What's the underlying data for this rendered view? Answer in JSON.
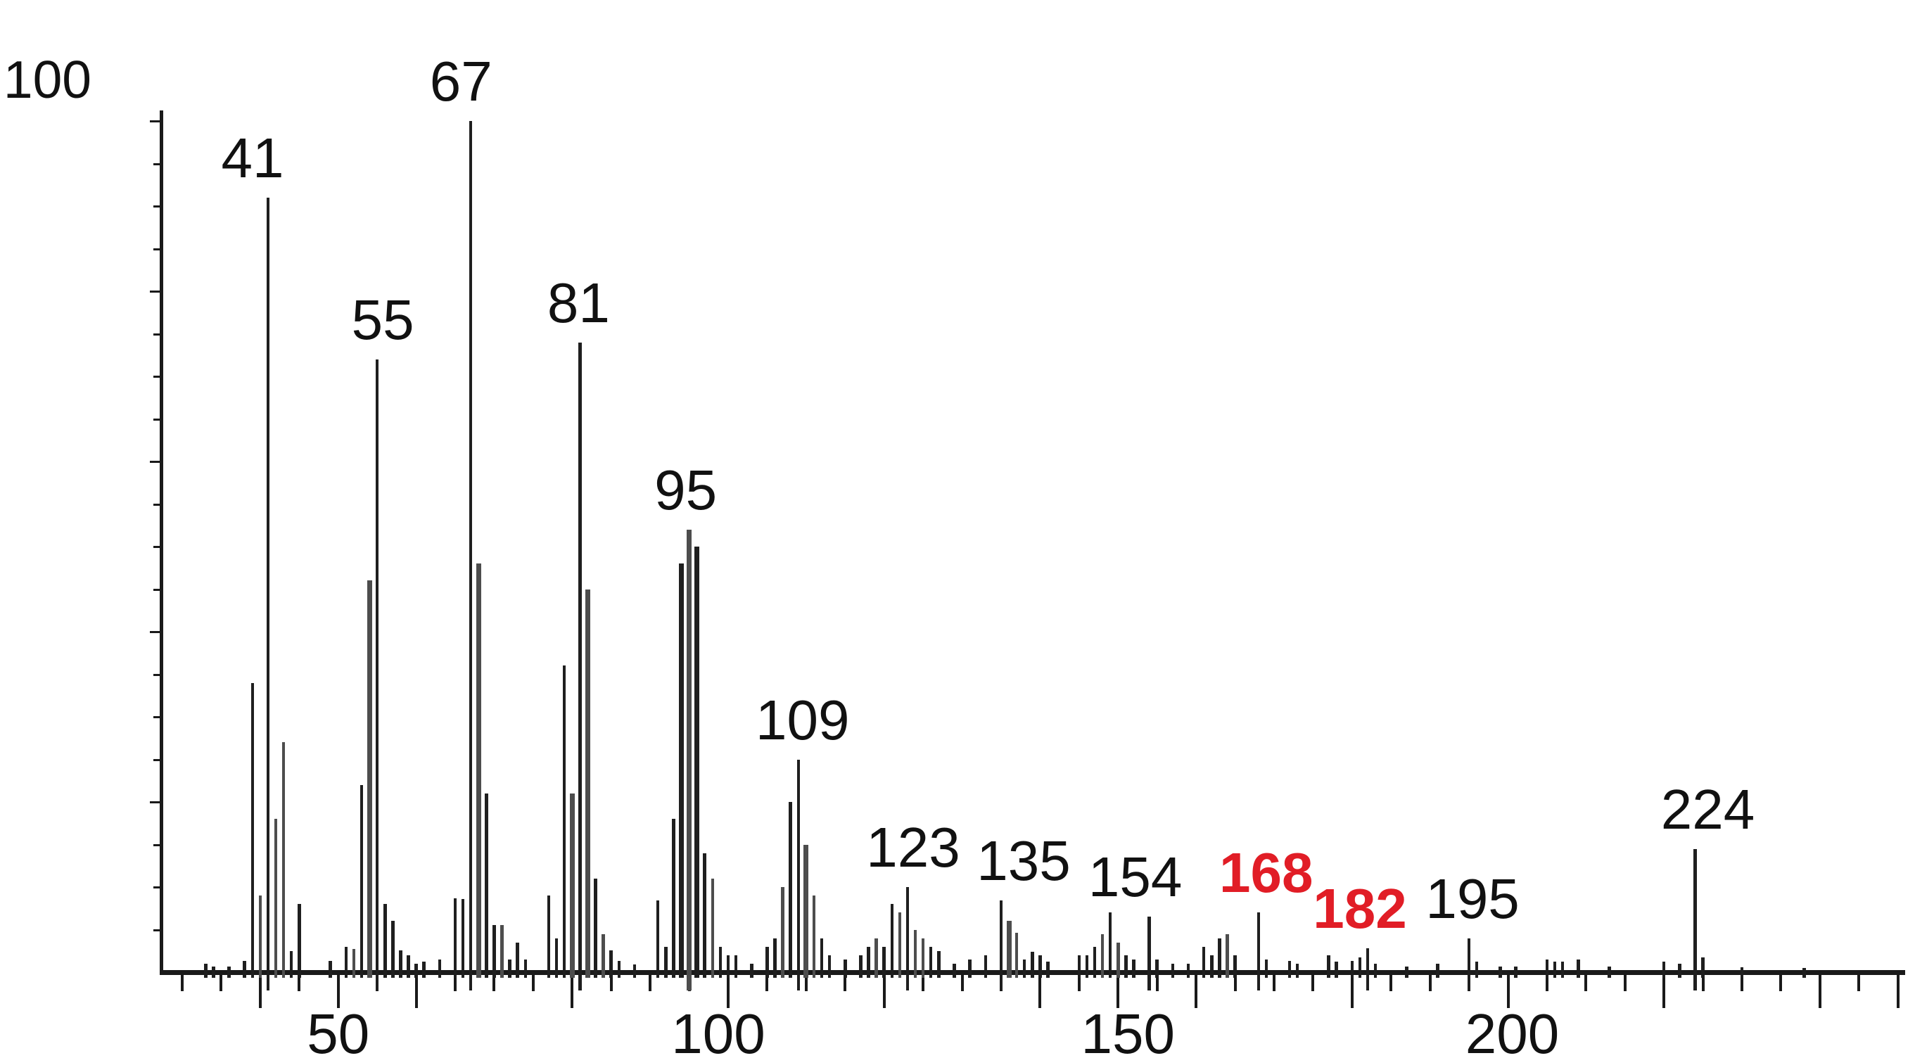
{
  "figure": {
    "background": "#ffffff",
    "axis_color": "#1a1a1a",
    "bar_color": "#1f1f1f",
    "bar_color_gray": "#4d4d4d",
    "highlight_red": "#e11d26"
  },
  "chart_data": {
    "type": "bar",
    "kind": "mass-spectrum",
    "title": "",
    "xlabel": "",
    "ylabel": "",
    "grid": "off",
    "legend": "none",
    "x_range": [
      26.5,
      250.5
    ],
    "ylim": [
      0,
      103
    ],
    "y_axis_top_label": "100",
    "x_tick_labels": [
      {
        "text": "50",
        "mz": 50,
        "dx": 0
      },
      {
        "text": "100",
        "mz": 100,
        "dx": -14
      },
      {
        "text": "150",
        "mz": 150,
        "dx": 14
      },
      {
        "text": "200",
        "mz": 200,
        "dx": 6
      }
    ],
    "x_minor_tick_step": 5,
    "x_major_tick_step": 20,
    "peaks": [
      [
        33,
        1,
        0,
        0
      ],
      [
        34,
        0.7,
        0,
        0
      ],
      [
        36,
        0.7,
        0,
        0
      ],
      [
        38,
        1.3,
        0,
        0
      ],
      [
        39,
        34,
        0,
        0
      ],
      [
        40,
        9,
        1,
        0
      ],
      [
        41,
        91,
        0,
        0
      ],
      [
        42,
        18,
        1,
        0
      ],
      [
        43,
        27,
        1,
        0
      ],
      [
        44,
        2.5,
        0,
        0
      ],
      [
        45,
        8,
        0,
        0
      ],
      [
        49,
        1.3,
        0,
        0
      ],
      [
        51,
        3,
        0,
        0
      ],
      [
        52,
        2.7,
        1,
        0
      ],
      [
        53,
        22,
        0,
        0
      ],
      [
        54,
        46,
        1,
        1
      ],
      [
        55,
        72,
        0,
        0
      ],
      [
        56,
        8,
        0,
        0
      ],
      [
        57,
        6,
        0,
        0
      ],
      [
        58,
        2.6,
        0,
        0
      ],
      [
        59,
        2,
        0,
        0
      ],
      [
        60,
        1,
        0,
        0
      ],
      [
        61,
        1.2,
        0,
        0
      ],
      [
        63,
        1.5,
        0,
        0
      ],
      [
        65,
        8.7,
        0,
        0
      ],
      [
        66,
        8.6,
        0,
        0
      ],
      [
        67,
        100,
        0,
        0
      ],
      [
        68,
        48,
        1,
        1
      ],
      [
        69,
        21,
        0,
        0
      ],
      [
        70,
        5.5,
        0,
        0
      ],
      [
        71,
        5.5,
        1,
        0
      ],
      [
        72,
        1.5,
        0,
        0
      ],
      [
        73,
        3.5,
        0,
        0
      ],
      [
        74,
        1.5,
        0,
        0
      ],
      [
        77,
        9,
        0,
        0
      ],
      [
        78,
        4,
        0,
        0
      ],
      [
        79,
        36,
        0,
        0
      ],
      [
        80,
        21,
        1,
        1
      ],
      [
        81,
        74,
        0,
        0
      ],
      [
        82,
        45,
        1,
        1
      ],
      [
        83,
        11,
        0,
        0
      ],
      [
        84,
        4.5,
        1,
        0
      ],
      [
        85,
        2.6,
        0,
        0
      ],
      [
        86,
        1.3,
        0,
        0
      ],
      [
        88,
        0.9,
        0,
        0
      ],
      [
        91,
        8.4,
        0,
        0
      ],
      [
        92,
        3,
        0,
        0
      ],
      [
        93,
        18,
        0,
        0
      ],
      [
        94,
        48,
        0,
        1
      ],
      [
        95,
        52,
        1,
        1
      ],
      [
        96,
        50,
        0,
        1
      ],
      [
        97,
        14,
        0,
        0
      ],
      [
        98,
        11,
        1,
        0
      ],
      [
        99,
        3,
        0,
        0
      ],
      [
        100,
        2,
        0,
        0
      ],
      [
        101,
        2,
        0,
        0
      ],
      [
        103,
        1,
        0,
        0
      ],
      [
        105,
        3,
        0,
        0
      ],
      [
        106,
        4,
        0,
        0
      ],
      [
        107,
        10,
        1,
        0
      ],
      [
        108,
        20,
        0,
        0
      ],
      [
        109,
        25,
        0,
        0
      ],
      [
        110,
        15,
        1,
        1
      ],
      [
        111,
        9,
        1,
        0
      ],
      [
        112,
        4,
        0,
        0
      ],
      [
        113,
        2,
        0,
        0
      ],
      [
        115,
        1.5,
        0,
        0
      ],
      [
        117,
        2,
        0,
        0
      ],
      [
        118,
        3,
        0,
        0
      ],
      [
        119,
        4,
        1,
        0
      ],
      [
        120,
        3,
        0,
        0
      ],
      [
        121,
        8,
        0,
        0
      ],
      [
        122,
        7,
        1,
        0
      ],
      [
        123,
        10,
        0,
        0
      ],
      [
        124,
        5,
        1,
        0
      ],
      [
        125,
        4,
        1,
        0
      ],
      [
        126,
        3,
        0,
        0
      ],
      [
        127,
        2.5,
        0,
        0
      ],
      [
        129,
        1,
        0,
        0
      ],
      [
        131,
        1.5,
        0,
        0
      ],
      [
        133,
        2,
        0,
        0
      ],
      [
        135,
        8.4,
        0,
        0
      ],
      [
        136,
        6,
        1,
        1
      ],
      [
        137,
        4.6,
        1,
        0
      ],
      [
        138,
        1.5,
        0,
        0
      ],
      [
        139,
        2.4,
        0,
        0
      ],
      [
        140,
        2,
        0,
        0
      ],
      [
        141,
        1.2,
        0,
        0
      ],
      [
        145,
        2,
        0,
        0
      ],
      [
        146,
        2,
        0,
        0
      ],
      [
        147,
        3,
        0,
        0
      ],
      [
        148,
        4.5,
        1,
        0
      ],
      [
        149,
        7,
        0,
        0
      ],
      [
        150,
        3.5,
        1,
        0
      ],
      [
        151,
        2,
        0,
        0
      ],
      [
        152,
        1.5,
        0,
        0
      ],
      [
        154,
        6.5,
        0,
        0
      ],
      [
        155,
        1.5,
        0,
        0
      ],
      [
        157,
        1,
        0,
        0
      ],
      [
        159,
        1,
        0,
        0
      ],
      [
        161,
        3,
        0,
        0
      ],
      [
        162,
        2,
        0,
        0
      ],
      [
        163,
        4,
        0,
        0
      ],
      [
        164,
        4.5,
        1,
        0
      ],
      [
        165,
        2,
        0,
        0
      ],
      [
        168,
        7,
        0,
        0
      ],
      [
        169,
        1.5,
        0,
        0
      ],
      [
        172,
        1.3,
        0,
        0
      ],
      [
        173,
        1,
        0,
        0
      ],
      [
        177,
        2,
        0,
        0
      ],
      [
        178,
        1.2,
        0,
        0
      ],
      [
        180,
        1.3,
        0,
        0
      ],
      [
        181,
        1.7,
        0,
        0
      ],
      [
        182,
        2.8,
        0,
        0
      ],
      [
        183,
        1,
        0,
        0
      ],
      [
        187,
        0.7,
        0,
        0
      ],
      [
        191,
        1,
        0,
        0
      ],
      [
        195,
        4,
        0,
        0
      ],
      [
        196,
        1.2,
        0,
        0
      ],
      [
        199,
        0.7,
        0,
        0
      ],
      [
        201,
        0.7,
        0,
        0
      ],
      [
        205,
        1.5,
        0,
        0
      ],
      [
        206,
        1.2,
        0,
        0
      ],
      [
        207,
        1.2,
        0,
        0
      ],
      [
        209,
        1.5,
        0,
        0
      ],
      [
        213,
        0.7,
        0,
        0
      ],
      [
        220,
        1.2,
        0,
        0
      ],
      [
        222,
        1,
        0,
        0
      ],
      [
        224,
        14.5,
        0,
        0
      ],
      [
        225,
        1.7,
        0,
        0
      ],
      [
        230,
        0.6,
        0,
        0
      ],
      [
        238,
        0.5,
        0,
        0
      ]
    ],
    "peak_labels": [
      {
        "text": "41",
        "mz": 41,
        "color": "black",
        "dx": -22
      },
      {
        "text": "55",
        "mz": 55,
        "color": "black",
        "dx": 8
      },
      {
        "text": "67",
        "mz": 67,
        "color": "black",
        "dx": -14
      },
      {
        "text": "81",
        "mz": 81,
        "color": "black",
        "dx": -2
      },
      {
        "text": "95",
        "mz": 95,
        "color": "black",
        "dx": -5
      },
      {
        "text": "109",
        "mz": 109,
        "color": "black",
        "dx": 6
      },
      {
        "text": "123",
        "mz": 123,
        "color": "black",
        "dx": 8
      },
      {
        "text": "135",
        "mz": 135,
        "color": "black",
        "dx": 32
      },
      {
        "text": "154",
        "mz": 154,
        "color": "black",
        "dx": -20
      },
      {
        "text": "168",
        "mz": 168,
        "color": "red",
        "dx": 11
      },
      {
        "text": "182",
        "mz": 182,
        "color": "red",
        "dx": -11
      },
      {
        "text": "195",
        "mz": 195,
        "color": "black",
        "dx": 5
      },
      {
        "text": "224",
        "mz": 224,
        "color": "black",
        "dx": 18
      }
    ]
  }
}
